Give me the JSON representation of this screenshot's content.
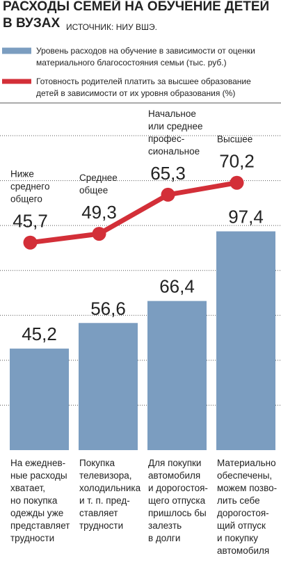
{
  "chart_data": {
    "type": "bar",
    "title": "РАСХОДЫ СЕМЕЙ НА ОБУЧЕНИЕ ДЕТЕЙ\nВ ВУЗАХ",
    "source": "ИСТОЧНИК: НИУ ВШЭ.",
    "categories": [
      "На ежеднев-\nные расходы\nхватает,\nно покупка\nодежды уже\nпредставляет\nтрудности",
      "Покупка\nтелевизора,\nхолодильника\nи т. п. пред-\nставляет\nтрудности",
      "Для покупки\nавтомобиля\nи дорогостоя-\nщего отпуска\nпришлось бы\nзалезть\nв долги",
      "Материально\nобеспечены,\nможем позво-\nлить себе\nдорогостоя-\nщий отпуск\nи покупку\nавтомобиля"
    ],
    "ylim": [
      0,
      140
    ],
    "yticks": [
      20,
      40,
      60,
      80,
      100,
      120,
      140
    ],
    "y2lim": [
      -39.3,
      89.5
    ],
    "grid": true,
    "series": [
      {
        "name": "Уровень расходов на обучение в зависимости от оценки\nматериального благосостояния семьи (тыс. руб.)",
        "type": "bar",
        "color": "#7b9dc0",
        "values": [
          45.2,
          56.6,
          66.4,
          97.4
        ],
        "value_labels": [
          "45,2",
          "56,6",
          "66,4",
          "97,4"
        ]
      },
      {
        "name": "Готовность родителей платить за высшее образование\nдетей в зависимости от их уровня образования (%)",
        "type": "line",
        "axis": "y2",
        "color": "#d32f38",
        "values": [
          45.7,
          49.3,
          65.3,
          70.2
        ],
        "value_labels": [
          "45,7",
          "49,3",
          "65,3",
          "70,2"
        ],
        "annotations": [
          "Ниже\nсреднего\nобщего",
          "Среднее\nобщее",
          "Начальное\nили среднее\nпрофес-\nсиональное",
          "Высшее"
        ]
      }
    ]
  }
}
